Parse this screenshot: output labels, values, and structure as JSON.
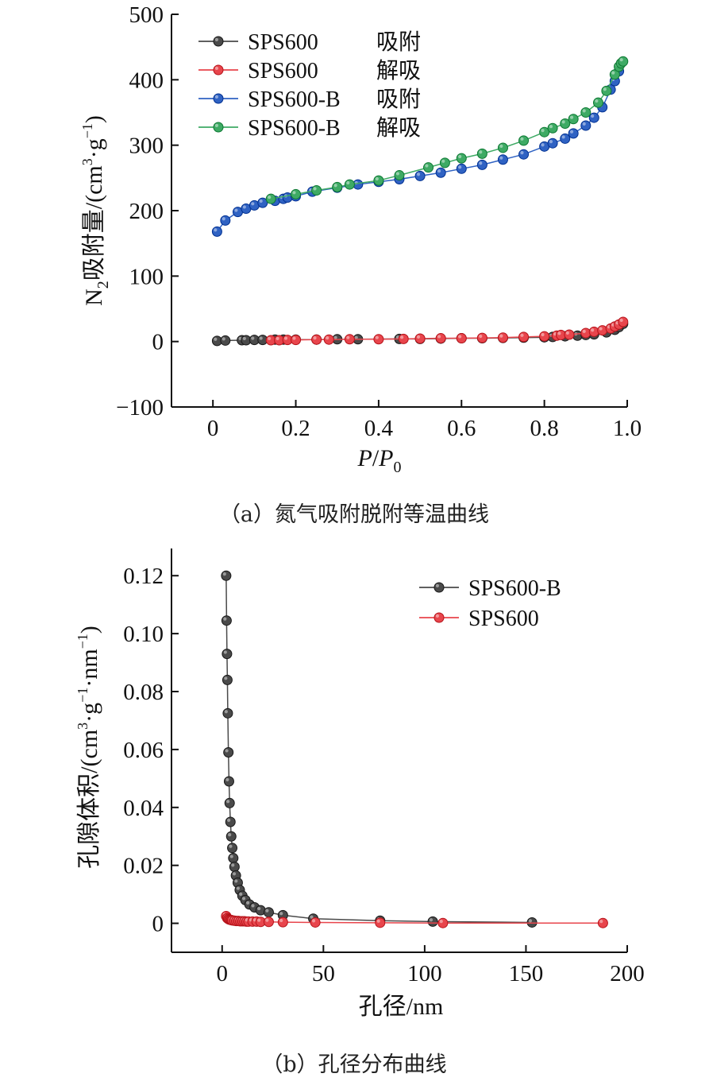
{
  "panel_a": {
    "caption": "（a）氮气吸附脱附等温曲线",
    "ylabel": {
      "main": "N",
      "sub": "2",
      "rest": "吸附量/(cm",
      "sup": "3",
      "mid": "·g",
      "sup2": "−1",
      "end": ")"
    },
    "xlabel": {
      "p": "P",
      "slash": "/",
      "p0": "P",
      "sub": "0"
    },
    "chart_data": {
      "type": "scatter",
      "xlim": [
        -0.1,
        1.0
      ],
      "ylim": [
        -100,
        500
      ],
      "xticks": [
        "0",
        "0.2",
        "0.4",
        "0.6",
        "0.8",
        "1.0"
      ],
      "xtick_values": [
        0,
        0.2,
        0.4,
        0.6,
        0.8,
        1.0
      ],
      "yticks": [
        "−100",
        "0",
        "100",
        "200",
        "300",
        "400",
        "500"
      ],
      "ytick_values": [
        -100,
        0,
        100,
        200,
        300,
        400,
        500
      ],
      "legend_position": "top-left",
      "series": [
        {
          "name": "SPS600",
          "label2": "吸附",
          "color": "#4a4a4a",
          "x": [
            0.01,
            0.03,
            0.07,
            0.08,
            0.1,
            0.12,
            0.15,
            0.17,
            0.2,
            0.25,
            0.3,
            0.35,
            0.45,
            0.5,
            0.55,
            0.6,
            0.65,
            0.7,
            0.75,
            0.8,
            0.82,
            0.85,
            0.88,
            0.9,
            0.92,
            0.95,
            0.97,
            0.98,
            0.99
          ],
          "y": [
            1,
            1.5,
            2,
            2,
            2.5,
            2.5,
            3,
            3,
            3,
            3,
            3.5,
            3.5,
            4,
            4,
            4.5,
            5,
            5,
            5.5,
            6,
            6.5,
            7,
            8,
            9,
            10,
            11,
            14,
            18,
            22,
            27
          ]
        },
        {
          "name": "SPS600",
          "label2": "解吸",
          "color": "#e8454c",
          "x": [
            0.14,
            0.16,
            0.18,
            0.2,
            0.25,
            0.28,
            0.33,
            0.4,
            0.46,
            0.5,
            0.55,
            0.6,
            0.65,
            0.7,
            0.75,
            0.8,
            0.83,
            0.84,
            0.86,
            0.9,
            0.92,
            0.94,
            0.96,
            0.97,
            0.98,
            0.99
          ],
          "y": [
            2,
            2,
            2.5,
            2.5,
            3,
            3,
            3.5,
            3.5,
            4,
            4.5,
            5,
            5,
            5.5,
            6,
            7,
            8,
            9,
            10,
            10.5,
            13,
            15,
            17,
            20,
            23,
            26,
            30
          ]
        },
        {
          "name": "SPS600-B",
          "label2": "吸附",
          "color": "#2f62c3",
          "x": [
            0.01,
            0.03,
            0.06,
            0.08,
            0.1,
            0.12,
            0.15,
            0.17,
            0.18,
            0.2,
            0.24,
            0.3,
            0.35,
            0.4,
            0.45,
            0.5,
            0.55,
            0.6,
            0.65,
            0.7,
            0.75,
            0.8,
            0.82,
            0.85,
            0.87,
            0.9,
            0.92,
            0.94,
            0.96,
            0.97,
            0.98
          ],
          "y": [
            168,
            185,
            198,
            203,
            208,
            212,
            215,
            218,
            220,
            222,
            229,
            235,
            240,
            244,
            248,
            253,
            258,
            264,
            270,
            278,
            286,
            298,
            303,
            310,
            318,
            330,
            342,
            358,
            385,
            398,
            413
          ]
        },
        {
          "name": "SPS600-B",
          "label2": "解吸",
          "color": "#3eaa64",
          "x": [
            0.14,
            0.2,
            0.25,
            0.3,
            0.33,
            0.4,
            0.45,
            0.52,
            0.56,
            0.6,
            0.65,
            0.7,
            0.75,
            0.8,
            0.82,
            0.85,
            0.87,
            0.9,
            0.93,
            0.95,
            0.97,
            0.98,
            0.985,
            0.99
          ],
          "y": [
            218,
            225,
            231,
            236,
            240,
            246,
            254,
            266,
            273,
            280,
            287,
            296,
            307,
            320,
            326,
            333,
            340,
            350,
            365,
            383,
            408,
            420,
            425,
            428
          ]
        }
      ]
    }
  },
  "panel_b": {
    "caption": "（b）孔径分布曲线",
    "ylabel": {
      "rest": "孔隙体积/(cm",
      "sup": "3",
      "mid": "·g",
      "sup2": "−1",
      "mid2": "·nm",
      "sup3": "−1",
      "end": ")"
    },
    "xlabel": "孔径/nm",
    "chart_data": {
      "type": "line",
      "xlim": [
        -25,
        200
      ],
      "ylim": [
        -0.01,
        0.125
      ],
      "xticks": [
        "0",
        "50",
        "100",
        "150",
        "200"
      ],
      "xtick_values": [
        0,
        50,
        100,
        150,
        200
      ],
      "yticks": [
        "0",
        "0.02",
        "0.04",
        "0.06",
        "0.08",
        "0.10",
        "0.12"
      ],
      "ytick_values": [
        0,
        0.02,
        0.04,
        0.06,
        0.08,
        0.1,
        0.12
      ],
      "legend_position": "top-right",
      "series": [
        {
          "name": "SPS600-B",
          "color": "#4a4a4a",
          "x": [
            2,
            2.2,
            2.4,
            2.6,
            2.8,
            3.1,
            3.4,
            3.7,
            4.1,
            4.5,
            5,
            5.5,
            6.1,
            6.8,
            7.7,
            8.7,
            10,
            11.5,
            13.5,
            16,
            19,
            23,
            30,
            45,
            78,
            104,
            153
          ],
          "y": [
            0.12,
            0.1045,
            0.093,
            0.084,
            0.0725,
            0.059,
            0.049,
            0.0415,
            0.035,
            0.03,
            0.026,
            0.0225,
            0.0195,
            0.0165,
            0.014,
            0.0115,
            0.0095,
            0.008,
            0.0065,
            0.0055,
            0.0045,
            0.0038,
            0.0028,
            0.0016,
            0.0009,
            0.0006,
            0.0003
          ]
        },
        {
          "name": "SPS600",
          "color": "#e8454c",
          "x": [
            2,
            2.5,
            3,
            3.5,
            4,
            4.5,
            5,
            6,
            7,
            8,
            9,
            10,
            11,
            12,
            13,
            15,
            17,
            19,
            23,
            30,
            46,
            78,
            109,
            188
          ],
          "y": [
            0.0025,
            0.0018,
            0.0015,
            0.0013,
            0.0012,
            0.0011,
            0.001,
            0.0009,
            0.0008,
            0.0008,
            0.0007,
            0.0007,
            0.0007,
            0.0006,
            0.0006,
            0.0006,
            0.0006,
            0.0005,
            0.0005,
            0.0004,
            0.0003,
            0.0002,
            0.0001,
            0.0001
          ]
        }
      ]
    }
  }
}
